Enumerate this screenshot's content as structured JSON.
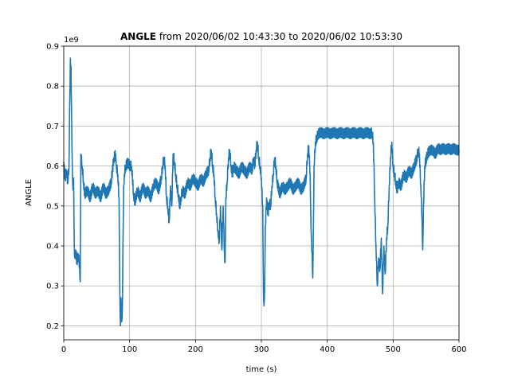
{
  "chart_data": {
    "type": "line",
    "title_bold": "ANGLE",
    "title_rest": " from 2020/06/02 10:43:30 to 2020/06/02 10:53:30",
    "xlabel": "time (s)",
    "ylabel": "ANGLE",
    "offset_text": "1e9",
    "xlim": [
      0,
      600
    ],
    "ylim": [
      0.165,
      0.9
    ],
    "xticks": [
      0,
      100,
      200,
      300,
      400,
      500,
      600
    ],
    "yticks": [
      0.2,
      0.3,
      0.4,
      0.5,
      0.6,
      0.7,
      0.8,
      0.9
    ],
    "grid": true,
    "color": "#1f77b4",
    "series": [
      {
        "values_xy": [
          [
            0,
            0.61
          ],
          [
            2,
            0.57
          ],
          [
            4,
            0.59
          ],
          [
            6,
            0.56
          ],
          [
            8,
            0.6
          ],
          [
            9,
            0.75
          ],
          [
            10,
            0.87
          ],
          [
            11,
            0.85
          ],
          [
            12,
            0.72
          ],
          [
            13,
            0.6
          ],
          [
            14,
            0.54
          ],
          [
            15,
            0.57
          ],
          [
            16,
            0.4
          ],
          [
            17,
            0.37
          ],
          [
            18,
            0.39
          ],
          [
            20,
            0.36
          ],
          [
            22,
            0.38
          ],
          [
            24,
            0.35
          ],
          [
            25,
            0.31
          ],
          [
            26,
            0.63
          ],
          [
            28,
            0.6
          ],
          [
            30,
            0.56
          ],
          [
            32,
            0.53
          ],
          [
            36,
            0.54
          ],
          [
            40,
            0.52
          ],
          [
            44,
            0.55
          ],
          [
            48,
            0.53
          ],
          [
            52,
            0.54
          ],
          [
            56,
            0.52
          ],
          [
            60,
            0.55
          ],
          [
            64,
            0.53
          ],
          [
            68,
            0.54
          ],
          [
            72,
            0.56
          ],
          [
            76,
            0.62
          ],
          [
            79,
            0.63
          ],
          [
            80,
            0.6
          ],
          [
            82,
            0.58
          ],
          [
            84,
            0.52
          ],
          [
            85,
            0.3
          ],
          [
            86,
            0.2
          ],
          [
            87,
            0.27
          ],
          [
            88,
            0.21
          ],
          [
            89,
            0.25
          ],
          [
            90,
            0.42
          ],
          [
            91,
            0.55
          ],
          [
            92,
            0.58
          ],
          [
            94,
            0.6
          ],
          [
            98,
            0.61
          ],
          [
            100,
            0.6
          ],
          [
            103,
            0.6
          ],
          [
            106,
            0.53
          ],
          [
            108,
            0.51
          ],
          [
            112,
            0.54
          ],
          [
            116,
            0.52
          ],
          [
            120,
            0.55
          ],
          [
            124,
            0.53
          ],
          [
            128,
            0.54
          ],
          [
            132,
            0.52
          ],
          [
            136,
            0.55
          ],
          [
            140,
            0.56
          ],
          [
            144,
            0.54
          ],
          [
            148,
            0.57
          ],
          [
            150,
            0.6
          ],
          [
            152,
            0.62
          ],
          [
            154,
            0.6
          ],
          [
            156,
            0.52
          ],
          [
            158,
            0.5
          ],
          [
            160,
            0.46
          ],
          [
            162,
            0.55
          ],
          [
            164,
            0.5
          ],
          [
            166,
            0.63
          ],
          [
            168,
            0.61
          ],
          [
            170,
            0.58
          ],
          [
            172,
            0.55
          ],
          [
            174,
            0.53
          ],
          [
            176,
            0.5
          ],
          [
            178,
            0.52
          ],
          [
            180,
            0.54
          ],
          [
            184,
            0.53
          ],
          [
            188,
            0.56
          ],
          [
            192,
            0.55
          ],
          [
            196,
            0.57
          ],
          [
            200,
            0.56
          ],
          [
            204,
            0.55
          ],
          [
            208,
            0.57
          ],
          [
            212,
            0.56
          ],
          [
            216,
            0.58
          ],
          [
            220,
            0.59
          ],
          [
            222,
            0.62
          ],
          [
            224,
            0.64
          ],
          [
            226,
            0.6
          ],
          [
            228,
            0.58
          ],
          [
            230,
            0.52
          ],
          [
            232,
            0.48
          ],
          [
            234,
            0.44
          ],
          [
            236,
            0.41
          ],
          [
            238,
            0.5
          ],
          [
            240,
            0.39
          ],
          [
            242,
            0.5
          ],
          [
            244,
            0.38
          ],
          [
            245,
            0.36
          ],
          [
            246,
            0.52
          ],
          [
            248,
            0.56
          ],
          [
            250,
            0.62
          ],
          [
            252,
            0.64
          ],
          [
            254,
            0.6
          ],
          [
            256,
            0.58
          ],
          [
            258,
            0.6
          ],
          [
            262,
            0.59
          ],
          [
            266,
            0.58
          ],
          [
            270,
            0.6
          ],
          [
            274,
            0.59
          ],
          [
            278,
            0.58
          ],
          [
            282,
            0.6
          ],
          [
            286,
            0.59
          ],
          [
            288,
            0.62
          ],
          [
            290,
            0.6
          ],
          [
            292,
            0.64
          ],
          [
            294,
            0.66
          ],
          [
            296,
            0.62
          ],
          [
            298,
            0.6
          ],
          [
            300,
            0.57
          ],
          [
            302,
            0.5
          ],
          [
            303,
            0.3
          ],
          [
            304,
            0.25
          ],
          [
            305,
            0.3
          ],
          [
            306,
            0.45
          ],
          [
            308,
            0.52
          ],
          [
            310,
            0.48
          ],
          [
            312,
            0.51
          ],
          [
            314,
            0.5
          ],
          [
            316,
            0.55
          ],
          [
            318,
            0.58
          ],
          [
            320,
            0.62
          ],
          [
            322,
            0.6
          ],
          [
            324,
            0.56
          ],
          [
            328,
            0.53
          ],
          [
            332,
            0.55
          ],
          [
            336,
            0.54
          ],
          [
            340,
            0.55
          ],
          [
            344,
            0.56
          ],
          [
            348,
            0.54
          ],
          [
            352,
            0.55
          ],
          [
            356,
            0.56
          ],
          [
            360,
            0.54
          ],
          [
            364,
            0.55
          ],
          [
            368,
            0.57
          ],
          [
            370,
            0.63
          ],
          [
            372,
            0.65
          ],
          [
            374,
            0.58
          ],
          [
            375,
            0.48
          ],
          [
            376,
            0.42
          ],
          [
            377,
            0.38
          ],
          [
            378,
            0.32
          ],
          [
            379,
            0.45
          ],
          [
            380,
            0.6
          ],
          [
            382,
            0.66
          ],
          [
            384,
            0.67
          ],
          [
            386,
            0.68
          ],
          [
            390,
            0.685
          ],
          [
            395,
            0.68
          ],
          [
            400,
            0.685
          ],
          [
            405,
            0.68
          ],
          [
            410,
            0.685
          ],
          [
            415,
            0.68
          ],
          [
            420,
            0.685
          ],
          [
            425,
            0.68
          ],
          [
            430,
            0.685
          ],
          [
            435,
            0.68
          ],
          [
            440,
            0.685
          ],
          [
            445,
            0.68
          ],
          [
            450,
            0.685
          ],
          [
            455,
            0.68
          ],
          [
            460,
            0.685
          ],
          [
            465,
            0.68
          ],
          [
            468,
            0.685
          ],
          [
            470,
            0.66
          ],
          [
            472,
            0.52
          ],
          [
            474,
            0.4
          ],
          [
            476,
            0.3
          ],
          [
            478,
            0.37
          ],
          [
            480,
            0.34
          ],
          [
            482,
            0.42
          ],
          [
            484,
            0.28
          ],
          [
            486,
            0.4
          ],
          [
            488,
            0.33
          ],
          [
            490,
            0.42
          ],
          [
            492,
            0.45
          ],
          [
            494,
            0.55
          ],
          [
            496,
            0.62
          ],
          [
            498,
            0.66
          ],
          [
            500,
            0.6
          ],
          [
            502,
            0.58
          ],
          [
            504,
            0.56
          ],
          [
            506,
            0.54
          ],
          [
            508,
            0.56
          ],
          [
            512,
            0.55
          ],
          [
            516,
            0.58
          ],
          [
            520,
            0.57
          ],
          [
            524,
            0.59
          ],
          [
            528,
            0.58
          ],
          [
            532,
            0.6
          ],
          [
            536,
            0.62
          ],
          [
            538,
            0.64
          ],
          [
            540,
            0.63
          ],
          [
            542,
            0.55
          ],
          [
            543,
            0.52
          ],
          [
            544,
            0.46
          ],
          [
            545,
            0.39
          ],
          [
            546,
            0.5
          ],
          [
            548,
            0.6
          ],
          [
            552,
            0.63
          ],
          [
            556,
            0.64
          ],
          [
            560,
            0.64
          ],
          [
            564,
            0.63
          ],
          [
            568,
            0.645
          ],
          [
            572,
            0.64
          ],
          [
            576,
            0.645
          ],
          [
            580,
            0.64
          ],
          [
            584,
            0.645
          ],
          [
            588,
            0.64
          ],
          [
            592,
            0.645
          ],
          [
            596,
            0.64
          ],
          [
            600,
            0.64
          ]
        ]
      }
    ]
  }
}
